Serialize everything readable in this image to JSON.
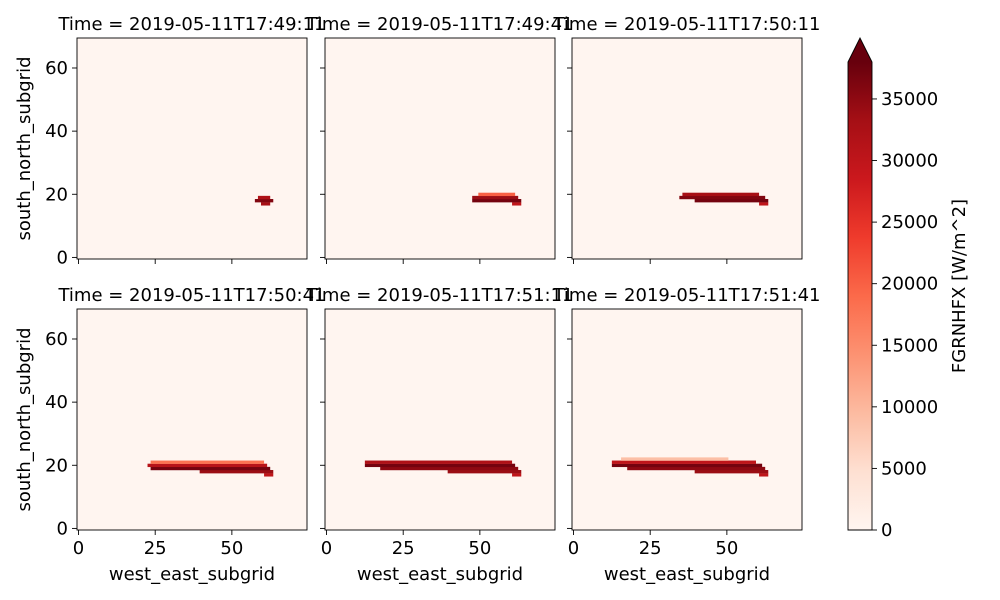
{
  "chart_data": {
    "type": "heatmap",
    "xlabel": "west_east_subgrid",
    "ylabel": "south_north_subgrid",
    "xlim": [
      -0.5,
      74.5
    ],
    "ylim": [
      -0.5,
      69.5
    ],
    "xticks": [
      0,
      25,
      50
    ],
    "yticks": [
      0,
      20,
      40,
      60
    ],
    "colorbar": {
      "label": "FGRNHFX [W/m^2]",
      "min": 0,
      "max": 38000,
      "ticks": [
        0,
        5000,
        10000,
        15000,
        20000,
        25000,
        30000,
        35000
      ],
      "extend": "max",
      "colormap": "Reds"
    },
    "panels": [
      {
        "title": "Time = 2019-05-11T17:49:11",
        "hot_rows": [
          {
            "y": 17,
            "x0": 60,
            "x1": 62,
            "v": 33000
          },
          {
            "y": 18,
            "x0": 58,
            "x1": 63,
            "v": 36000
          },
          {
            "y": 19,
            "x0": 59,
            "x1": 62,
            "v": 32000
          }
        ]
      },
      {
        "title": "Time = 2019-05-11T17:49:41",
        "hot_rows": [
          {
            "y": 17,
            "x0": 61,
            "x1": 63,
            "v": 30000
          },
          {
            "y": 18,
            "x0": 48,
            "x1": 63,
            "v": 37000
          },
          {
            "y": 19,
            "x0": 48,
            "x1": 62,
            "v": 34000
          },
          {
            "y": 20,
            "x0": 50,
            "x1": 61,
            "v": 20000
          }
        ]
      },
      {
        "title": "Time = 2019-05-11T17:50:11",
        "hot_rows": [
          {
            "y": 17,
            "x0": 61,
            "x1": 63,
            "v": 30000
          },
          {
            "y": 18,
            "x0": 40,
            "x1": 63,
            "v": 37000
          },
          {
            "y": 19,
            "x0": 35,
            "x1": 62,
            "v": 36000
          },
          {
            "y": 20,
            "x0": 36,
            "x1": 60,
            "v": 33000
          }
        ]
      },
      {
        "title": "Time = 2019-05-11T17:50:41",
        "hot_rows": [
          {
            "y": 17,
            "x0": 61,
            "x1": 63,
            "v": 30000
          },
          {
            "y": 18,
            "x0": 40,
            "x1": 63,
            "v": 34000
          },
          {
            "y": 19,
            "x0": 24,
            "x1": 62,
            "v": 37000
          },
          {
            "y": 20,
            "x0": 23,
            "x1": 61,
            "v": 31000
          },
          {
            "y": 21,
            "x0": 24,
            "x1": 60,
            "v": 18000
          }
        ]
      },
      {
        "title": "Time = 2019-05-11T17:51:11",
        "hot_rows": [
          {
            "y": 17,
            "x0": 61,
            "x1": 63,
            "v": 30000
          },
          {
            "y": 18,
            "x0": 40,
            "x1": 63,
            "v": 34000
          },
          {
            "y": 19,
            "x0": 18,
            "x1": 62,
            "v": 35000
          },
          {
            "y": 20,
            "x0": 13,
            "x1": 61,
            "v": 37000
          },
          {
            "y": 21,
            "x0": 13,
            "x1": 60,
            "v": 32000
          }
        ]
      },
      {
        "title": "Time = 2019-05-11T17:51:41",
        "hot_rows": [
          {
            "y": 17,
            "x0": 61,
            "x1": 63,
            "v": 30000
          },
          {
            "y": 18,
            "x0": 40,
            "x1": 63,
            "v": 34000
          },
          {
            "y": 19,
            "x0": 18,
            "x1": 62,
            "v": 35000
          },
          {
            "y": 20,
            "x0": 13,
            "x1": 61,
            "v": 37000
          },
          {
            "y": 21,
            "x0": 13,
            "x1": 59,
            "v": 30000
          },
          {
            "y": 22,
            "x0": 16,
            "x1": 50,
            "v": 9000
          }
        ]
      }
    ]
  }
}
